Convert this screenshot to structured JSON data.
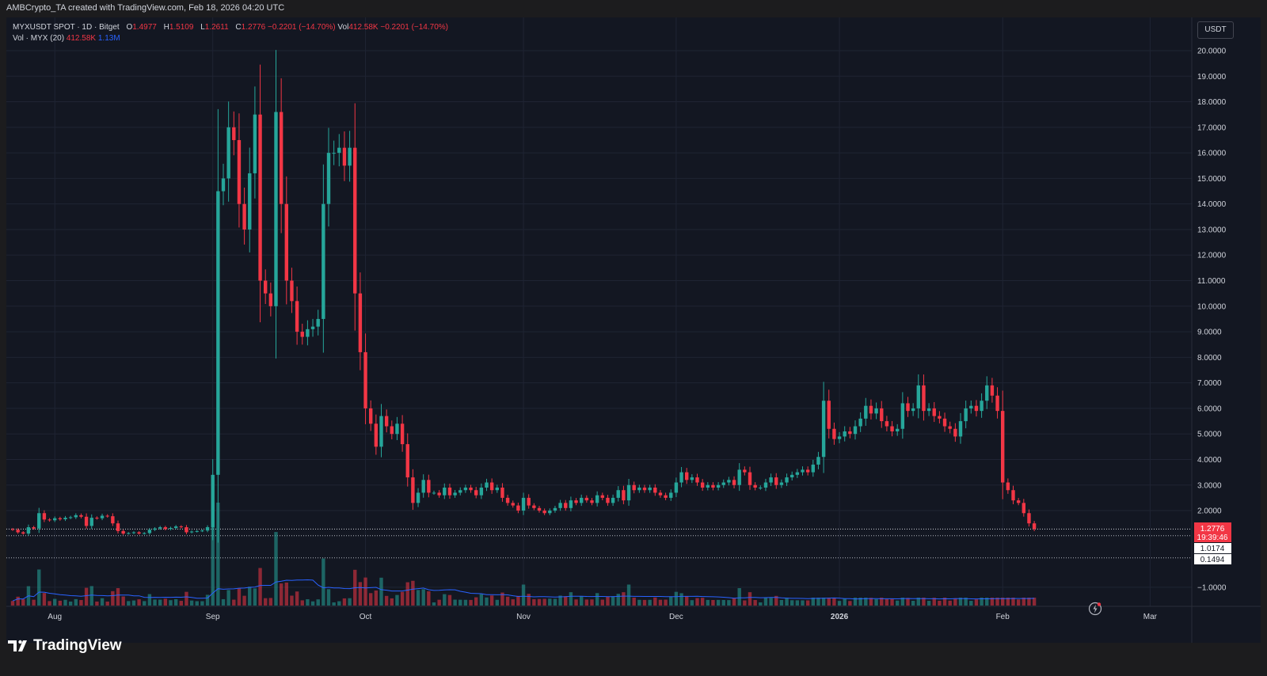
{
  "header": {
    "credit": "AMBCrypto_TA created with TradingView.com, Feb 18, 2026 04:20 UTC"
  },
  "legend": {
    "symbol": "MYXUSDT SPOT · 1D · Bitget",
    "o_label": "O",
    "o_value": "1.4977",
    "h_label": "H",
    "h_value": "1.5109",
    "l_label": "L",
    "l_value": "1.2611",
    "c_label": "C",
    "c_value": "1.2776",
    "change": "−0.2201 (−14.70%)",
    "vol_label": "Vol",
    "vol_value": "412.58K",
    "change2": "−0.2201 (−14.70%)",
    "vol_indicator": "Vol · MYX (20)",
    "vol_indicator_value": "412.58K",
    "vol_ma_value": "1.13M"
  },
  "currency_button": "USDT",
  "price_badges": {
    "last_price": "1.2776",
    "countdown": "19:39:46",
    "line1": "1.0174",
    "line2": "0.1494"
  },
  "brand": "TradingView",
  "colors": {
    "up": "#26a69a",
    "down": "#f23645",
    "background": "#131722",
    "grid": "#1f2433",
    "text": "#d1d4dc",
    "vol_ma": "#2962ff"
  },
  "chart_data": {
    "type": "candlestick",
    "symbol": "MYXUSDT",
    "interval": "1D",
    "x_tick_labels": [
      "Aug",
      "Sep",
      "Oct",
      "Nov",
      "Dec",
      "2026",
      "Feb",
      "Mar"
    ],
    "y_tick_labels": [
      "20.0000",
      "19.0000",
      "18.0000",
      "17.0000",
      "16.0000",
      "15.0000",
      "14.0000",
      "13.0000",
      "12.0000",
      "11.0000",
      "10.0000",
      "9.0000",
      "8.0000",
      "7.0000",
      "6.0000",
      "5.0000",
      "4.0000",
      "3.0000",
      "2.0000",
      "−1.0000"
    ],
    "ylim": [
      -1,
      20
    ],
    "grid": true,
    "horizontal_lines": [
      1.2776,
      1.0174,
      0.1494
    ],
    "close": [
      1.25,
      1.15,
      1.1,
      1.35,
      1.3,
      1.9,
      1.65,
      1.62,
      1.7,
      1.66,
      1.72,
      1.74,
      1.82,
      1.76,
      1.4,
      1.72,
      1.7,
      1.8,
      1.78,
      1.5,
      1.2,
      1.1,
      1.12,
      1.15,
      1.1,
      1.12,
      1.25,
      1.3,
      1.35,
      1.28,
      1.32,
      1.38,
      1.35,
      1.15,
      1.18,
      1.2,
      1.22,
      1.35,
      3.4,
      14.5,
      15,
      17,
      16.5,
      14,
      13,
      15.2,
      17.5,
      11,
      10.5,
      10,
      17.6,
      14,
      11,
      10.2,
      9,
      8.8,
      9.1,
      9.2,
      9.5,
      14,
      16,
      16,
      16.2,
      15.5,
      16.2,
      10.5,
      8.2,
      6,
      5.4,
      4.5,
      5.7,
      5.3,
      5,
      5.4,
      4.6,
      3.3,
      2.3,
      2.7,
      3.2,
      2.7,
      2.7,
      2.6,
      2.9,
      2.6,
      2.7,
      2.8,
      2.9,
      2.8,
      2.6,
      2.9,
      3.1,
      2.8,
      2.9,
      2.5,
      2.3,
      2.2,
      2.0,
      2.5,
      2.2,
      2.1,
      2.0,
      1.9,
      2.0,
      2.1,
      2.3,
      2.1,
      2.4,
      2.3,
      2.5,
      2.4,
      2.3,
      2.6,
      2.5,
      2.3,
      2.5,
      2.8,
      2.4,
      3.0,
      2.8,
      2.9,
      2.8,
      2.9,
      2.7,
      2.6,
      2.5,
      2.7,
      3.1,
      3.5,
      3.2,
      3.3,
      3.1,
      2.9,
      3.0,
      2.9,
      3.0,
      3.1,
      3.2,
      3.0,
      3.6,
      3.5,
      3.0,
      2.9,
      2.9,
      3.1,
      3.3,
      3.0,
      3.1,
      3.3,
      3.4,
      3.5,
      3.6,
      3.5,
      3.8,
      4.1,
      6.3,
      5.2,
      4.8,
      4.9,
      5.1,
      5.0,
      5.3,
      5.6,
      6.1,
      5.8,
      6.0,
      5.5,
      5.3,
      5.1,
      5.2,
      6.2,
      5.9,
      6.0,
      6.9,
      5.9,
      6.0,
      5.7,
      5.6,
      5.3,
      5.2,
      4.9,
      5.5,
      6.0,
      6.1,
      5.9,
      6.3,
      6.9,
      6.5,
      5.9,
      3.1,
      2.8,
      2.4,
      2.3,
      1.9,
      1.5,
      1.2776
    ]
  }
}
